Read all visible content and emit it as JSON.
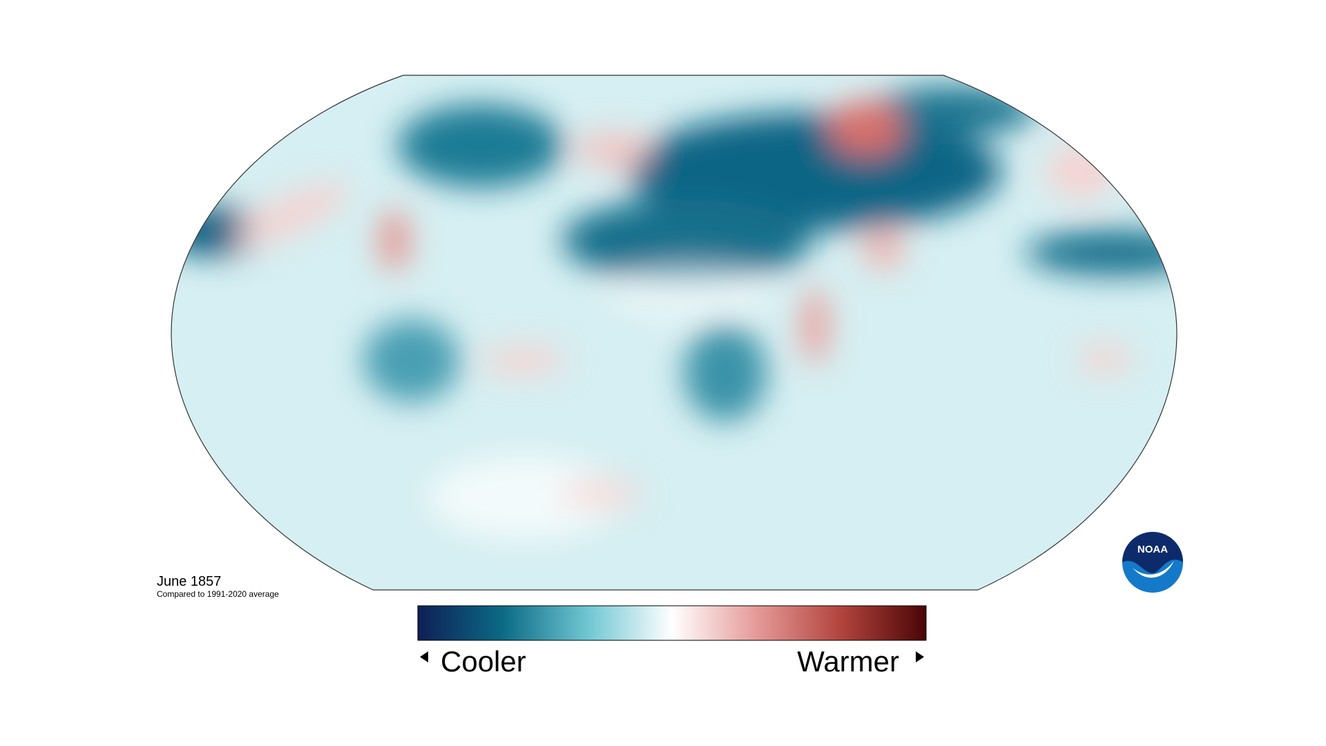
{
  "title": "June 1857",
  "subtitle": "Compared to 1991-2020 average",
  "legend": {
    "low_label": "Cooler",
    "high_label": "Warmer",
    "colors": [
      "#0f1f55",
      "#0b6a85",
      "#6fc6d2",
      "#ffffff",
      "#e59a98",
      "#b2433d",
      "#4a0506"
    ]
  },
  "logo": {
    "text": "NOAA"
  }
}
